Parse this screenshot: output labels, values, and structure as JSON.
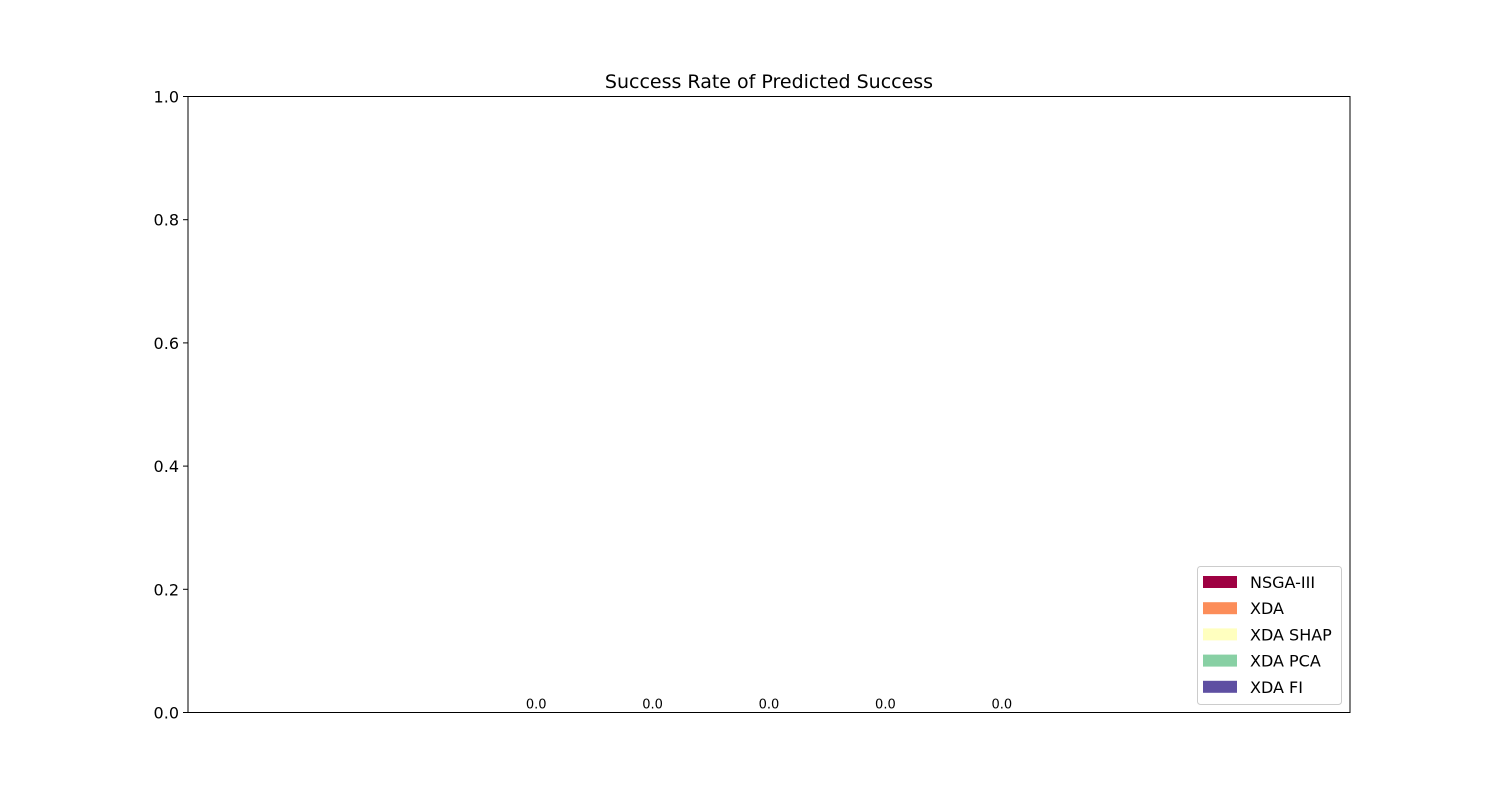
{
  "chart_data": {
    "type": "bar",
    "title": "Success Rate of Predicted Success",
    "xlabel": "",
    "ylabel": "",
    "ylim": [
      0,
      1.0
    ],
    "yticks": [
      "0.0",
      "0.2",
      "0.4",
      "0.6",
      "0.8",
      "1.0"
    ],
    "categories": [
      ""
    ],
    "series": [
      {
        "name": "NSGA-III",
        "color": "#9e0142",
        "values": [
          0.0
        ],
        "label": "0.0"
      },
      {
        "name": "XDA",
        "color": "#fc8d59",
        "values": [
          0.0
        ],
        "label": "0.0"
      },
      {
        "name": "XDA SHAP",
        "color": "#ffffbf",
        "values": [
          0.0
        ],
        "label": "0.0"
      },
      {
        "name": "XDA PCA",
        "color": "#88d0a4",
        "values": [
          0.0
        ],
        "label": "0.0"
      },
      {
        "name": "XDA FI",
        "color": "#5e4fa2",
        "values": [
          0.0
        ],
        "label": "0.0"
      }
    ],
    "grid": false,
    "legend_position": "lower-right"
  }
}
